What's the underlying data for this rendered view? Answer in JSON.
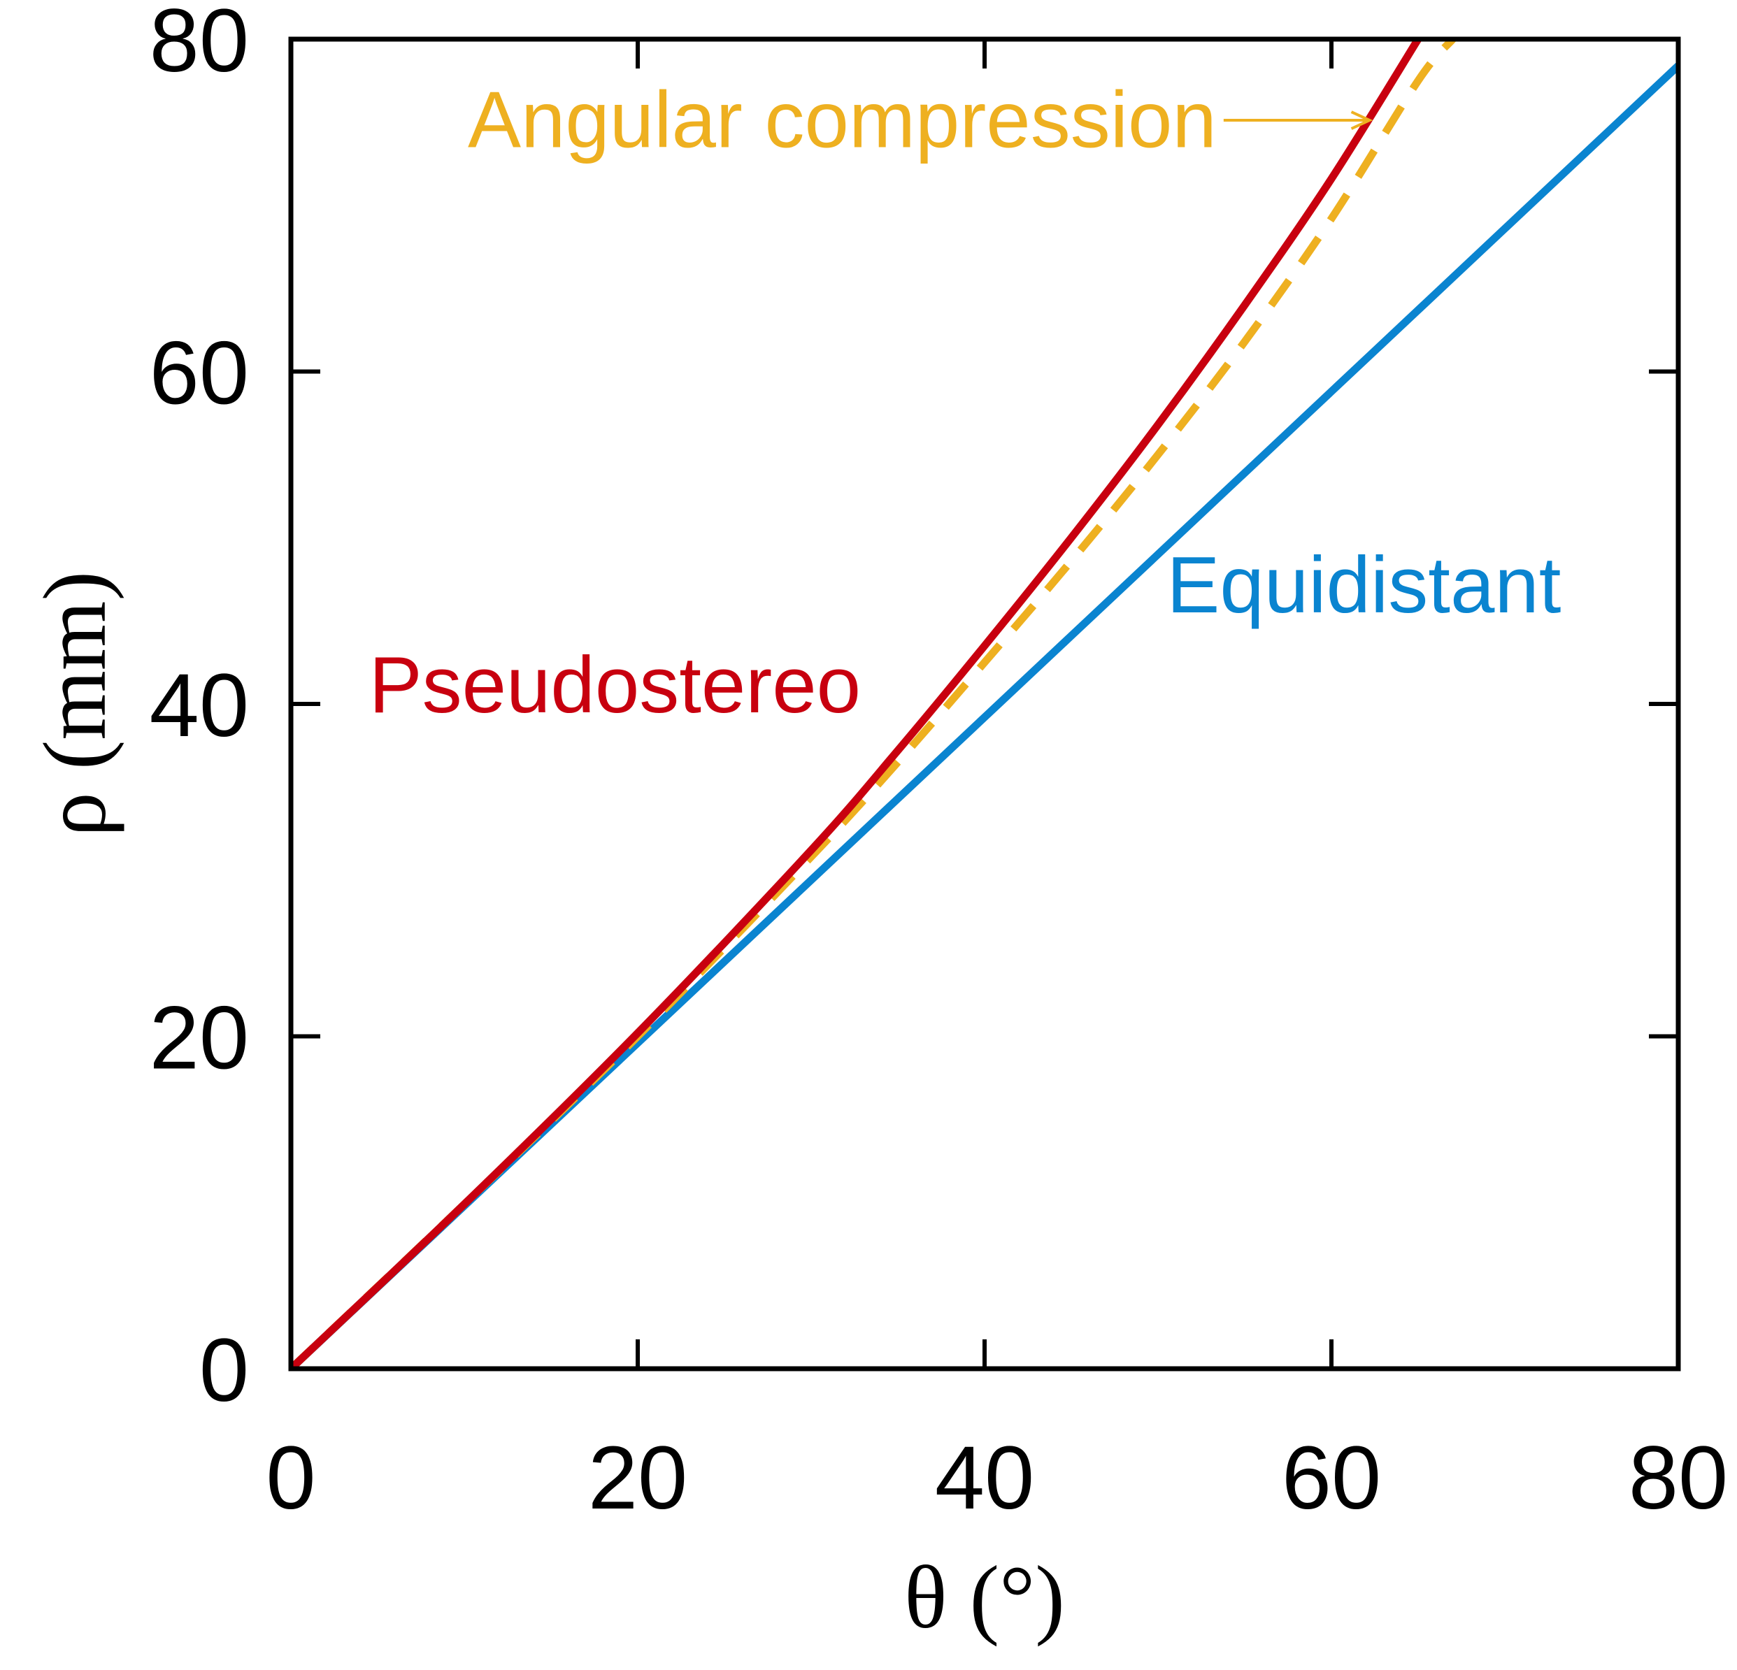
{
  "chart_data": {
    "type": "line",
    "xlabel": "θ (°)",
    "ylabel": "ρ (mm)",
    "xlim": [
      0,
      80
    ],
    "ylim": [
      0,
      80
    ],
    "xticks": [
      0,
      20,
      40,
      60,
      80
    ],
    "yticks": [
      0,
      20,
      40,
      60,
      80
    ],
    "grid": false,
    "legend": "none",
    "series": [
      {
        "name": "Equidistant",
        "color": "#0a84d0",
        "style": "solid",
        "x": [
          0,
          10,
          20,
          30,
          40,
          50,
          60,
          70,
          80
        ],
        "y": [
          0,
          9.8,
          19.6,
          29.4,
          39.2,
          49.0,
          58.8,
          68.6,
          78.4
        ]
      },
      {
        "name": "Pseudostereo",
        "color": "#c8000f",
        "style": "solid",
        "x": [
          0,
          10,
          20,
          30,
          35,
          40,
          45,
          50,
          55,
          60,
          65
        ],
        "y": [
          0,
          9.9,
          20.2,
          31.2,
          37.2,
          43.5,
          50.0,
          56.8,
          64.0,
          71.6,
          80.0
        ]
      },
      {
        "name": "Angular compression",
        "color": "#eeb020",
        "style": "dashed",
        "x": [
          0,
          10,
          20,
          30,
          35,
          40,
          45,
          50,
          55,
          60,
          65,
          67
        ],
        "y": [
          0,
          9.9,
          20.0,
          30.8,
          36.5,
          42.5,
          48.6,
          55.0,
          61.8,
          69.2,
          77.5,
          80.0
        ]
      }
    ],
    "annotations": [
      {
        "text": "Pseudostereo",
        "series": 1,
        "x": 4.5,
        "y": 39.5
      },
      {
        "text": "Equidistant",
        "series": 0,
        "x": 50.5,
        "y": 45.5
      },
      {
        "text": "Angular compression",
        "series": 2,
        "x": 10.2,
        "y": 73.5,
        "arrow_to": [
          62.2,
          74.0
        ]
      }
    ]
  }
}
